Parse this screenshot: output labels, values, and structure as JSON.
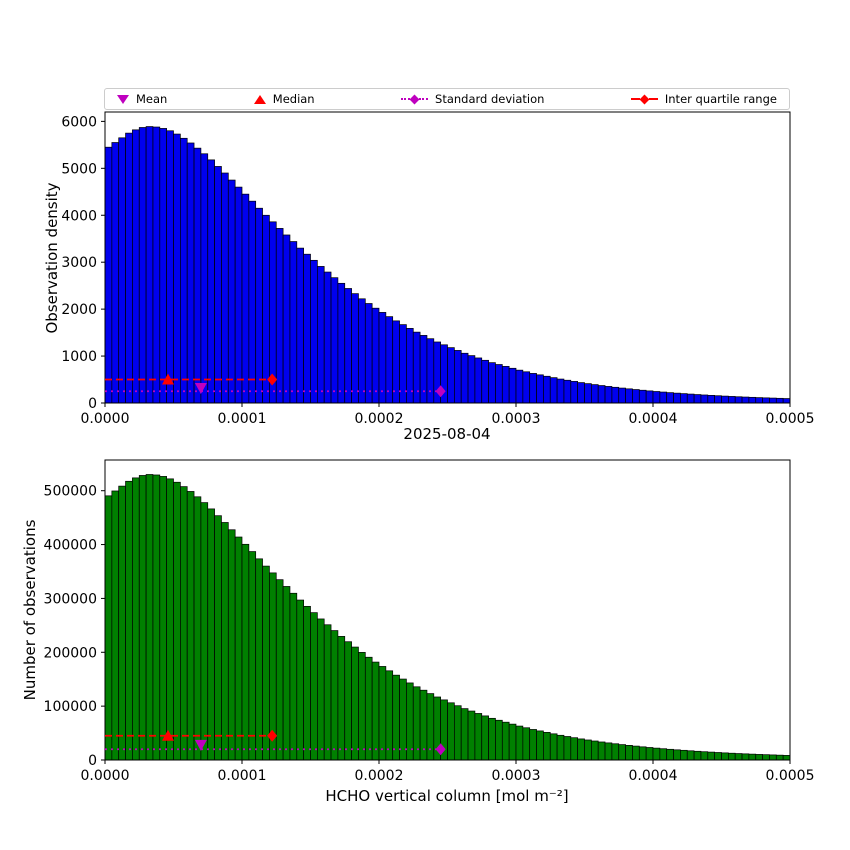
{
  "colors": {
    "magenta": "#BF00BF",
    "red": "#FF0000",
    "blue_bar": "#0000EE",
    "green_bar": "#008000",
    "edge": "#000000"
  },
  "legend": {
    "items": [
      {
        "label": "Mean",
        "marker": "triangle-down",
        "color": "#BF00BF"
      },
      {
        "label": "Median",
        "marker": "triangle-up",
        "color": "#FF0000"
      },
      {
        "label": "Standard deviation",
        "marker": "diamond-dotted-line",
        "color": "#BF00BF"
      },
      {
        "label": "Inter quartile range",
        "marker": "diamond-dashed-line",
        "color": "#FF0000"
      }
    ]
  },
  "chart_data": [
    {
      "type": "bar",
      "title": "",
      "ylabel": "Observation density",
      "xlabel": "",
      "bar_color": "#0000EE",
      "edge_color": "#000000",
      "grid": false,
      "legend_position": "top",
      "n_bins": 100,
      "bin_width": 5e-06,
      "xlim": [
        0,
        0.0005
      ],
      "ylim": [
        0,
        6200
      ],
      "xticks": [
        0,
        0.0001,
        0.0002,
        0.0003,
        0.0004,
        0.0005
      ],
      "yticks": [
        0,
        1000,
        2000,
        3000,
        4000,
        5000,
        6000
      ],
      "values": [
        5450,
        5550,
        5650,
        5750,
        5820,
        5870,
        5890,
        5880,
        5850,
        5800,
        5730,
        5640,
        5540,
        5430,
        5310,
        5180,
        5040,
        4900,
        4750,
        4600,
        4450,
        4300,
        4150,
        4000,
        3860,
        3720,
        3580,
        3440,
        3300,
        3170,
        3040,
        2910,
        2790,
        2670,
        2550,
        2440,
        2330,
        2220,
        2120,
        2020,
        1930,
        1840,
        1750,
        1670,
        1590,
        1510,
        1440,
        1370,
        1300,
        1240,
        1180,
        1120,
        1060,
        1010,
        960,
        910,
        860,
        820,
        780,
        740,
        700,
        665,
        630,
        600,
        570,
        540,
        510,
        485,
        460,
        435,
        413,
        392,
        372,
        353,
        335,
        318,
        302,
        287,
        272,
        258,
        245,
        233,
        221,
        210,
        200,
        190,
        180,
        171,
        163,
        155,
        147,
        140,
        133,
        127,
        121,
        115,
        110,
        105,
        100,
        95
      ],
      "stats": {
        "mean_x": 7e-05,
        "mean_y": 320,
        "median_x": 4.6e-05,
        "iqr_line": [
          0,
          0.000122
        ],
        "iqr_y": 500,
        "std_line": [
          0,
          0.000245
        ],
        "std_y": 250
      }
    },
    {
      "type": "bar",
      "title": "2025-08-04",
      "ylabel": "Number of observations",
      "xlabel": "HCHO vertical column [mol m⁻²]",
      "bar_color": "#008000",
      "edge_color": "#000000",
      "grid": false,
      "legend_position": "none",
      "n_bins": 100,
      "bin_width": 5e-06,
      "xlim": [
        0,
        0.0005
      ],
      "ylim": [
        0,
        557000
      ],
      "xticks": [
        0,
        0.0001,
        0.0002,
        0.0003,
        0.0004,
        0.0005
      ],
      "yticks": [
        0,
        100000,
        200000,
        300000,
        400000,
        500000
      ],
      "values": [
        490500,
        499500,
        508500,
        517500,
        523800,
        528300,
        530100,
        529200,
        526500,
        522000,
        515700,
        507600,
        498600,
        488700,
        477900,
        466200,
        453600,
        441000,
        427500,
        414000,
        400500,
        387000,
        373500,
        360000,
        347400,
        334800,
        322200,
        309600,
        297000,
        285300,
        273600,
        261900,
        251100,
        240300,
        229500,
        219600,
        209700,
        199800,
        190800,
        181800,
        173700,
        165600,
        157500,
        150300,
        143100,
        135900,
        129600,
        123300,
        117000,
        111600,
        106200,
        100800,
        95400,
        90900,
        86400,
        81900,
        77400,
        73800,
        70200,
        66600,
        63000,
        59850,
        56700,
        54000,
        51300,
        48600,
        45900,
        43650,
        41400,
        39150,
        37170,
        35280,
        33480,
        31770,
        30150,
        28620,
        27180,
        25830,
        24480,
        23220,
        22050,
        20970,
        19890,
        18900,
        18000,
        17100,
        16200,
        15390,
        14670,
        13950,
        13230,
        12600,
        11970,
        11430,
        10890,
        10350,
        9900,
        9450,
        9000,
        8550
      ],
      "stats": {
        "mean_x": 7e-05,
        "mean_y": 28000,
        "median_x": 4.6e-05,
        "iqr_line": [
          0,
          0.000122
        ],
        "iqr_y": 45000,
        "std_line": [
          0,
          0.000245
        ],
        "std_y": 20000
      }
    }
  ]
}
